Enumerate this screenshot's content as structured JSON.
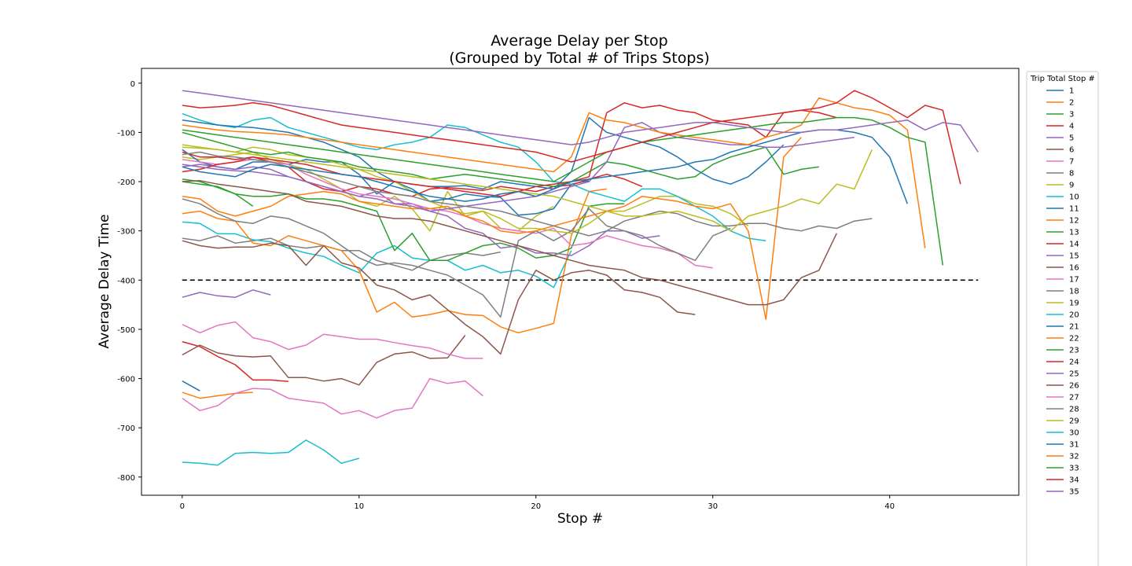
{
  "chart_data": {
    "type": "line",
    "title": [
      "Average Delay per Stop",
      "(Grouped by Total # of Trips Stops)"
    ],
    "xlabel": "Stop #",
    "ylabel": "Average Delay Time",
    "xlim": [
      -2.3,
      47.3
    ],
    "ylim": [
      -837,
      30
    ],
    "xticks": [
      0,
      10,
      20,
      30,
      40
    ],
    "yticks": [
      0,
      -100,
      -200,
      -300,
      -400,
      -500,
      -600,
      -700,
      -800
    ],
    "reference_line": {
      "y": -400,
      "x_range": [
        0,
        45
      ],
      "style": "dashed",
      "color": "#000000"
    },
    "legend": {
      "title": "Trip Total Stop #",
      "placement": "right (outside plot)"
    },
    "colors": [
      "#1f77b4",
      "#ff7f0e",
      "#2ca02c",
      "#d62728",
      "#9467bd",
      "#8c564b",
      "#e377c2",
      "#7f7f7f",
      "#bcbd22",
      "#17becf"
    ],
    "series": [
      {
        "name": "1",
        "values": [
          -605,
          -625
        ]
      },
      {
        "name": "2",
        "values": [
          -628,
          -640,
          -635,
          -630,
          -628
        ]
      },
      {
        "name": "3",
        "values": [
          -200,
          -205,
          -210,
          -225,
          -250
        ]
      },
      {
        "name": "4",
        "values": [
          -525,
          -535,
          -555,
          -572,
          -603,
          -603,
          -606
        ]
      },
      {
        "name": "5",
        "values": [
          -435,
          -425,
          -432,
          -435,
          -420,
          -430
        ]
      },
      {
        "name": "6",
        "values": [
          -552,
          -532,
          -548,
          -554,
          -556,
          -554,
          -598,
          -598,
          -605,
          -600,
          -613,
          -567,
          -550,
          -546,
          -559,
          -558,
          -512
        ]
      },
      {
        "name": "7",
        "values": [
          -490,
          -507,
          -492,
          -485,
          -517,
          -525,
          -541,
          -532,
          -510,
          -515,
          -520,
          -520,
          -527,
          -533,
          -538,
          -550,
          -559,
          -559
        ]
      },
      {
        "name": "8",
        "values": [
          -315,
          -320,
          -310,
          -325,
          -320,
          -315,
          -330,
          -335,
          -330,
          -340,
          -340,
          -360,
          -370,
          -380,
          -360,
          -350,
          -345,
          -350,
          -343
        ]
      },
      {
        "name": "9",
        "values": [
          -150,
          -155,
          -150,
          -145,
          -140,
          -155,
          -165,
          -175,
          -195,
          -215,
          -240,
          -250,
          -230,
          -255,
          -300,
          -220,
          -270,
          -260,
          -295,
          -300,
          -270,
          -250
        ]
      },
      {
        "name": "10",
        "values": [
          -282,
          -285,
          -306,
          -306,
          -318,
          -322,
          -335,
          -345,
          -352,
          -370,
          -385,
          -345,
          -330,
          -355,
          -360,
          -360,
          -380,
          -370,
          -385,
          -380,
          -392,
          -415,
          -340
        ]
      },
      {
        "name": "11",
        "values": [
          -135,
          -160,
          -170,
          -175,
          -160,
          -160,
          -165,
          -155,
          -160,
          -160,
          -185,
          -225,
          -200,
          -215,
          -240,
          -235,
          -225,
          -230,
          -232,
          -268,
          -265,
          -255,
          -205,
          -198
        ]
      },
      {
        "name": "12",
        "values": [
          -265,
          -260,
          -275,
          -280,
          -325,
          -330,
          -310,
          -320,
          -330,
          -340,
          -380,
          -465,
          -445,
          -475,
          -470,
          -462,
          -470,
          -472,
          -495,
          -507,
          -498,
          -488,
          -310,
          -220,
          -215
        ]
      },
      {
        "name": "13",
        "values": [
          -195,
          -200,
          -212,
          -225,
          -230,
          -230,
          -225,
          -235,
          -235,
          -240,
          -250,
          -260,
          -340,
          -305,
          -360,
          -360,
          -345,
          -330,
          -325,
          -335,
          -355,
          -350,
          -335,
          -250,
          -245,
          -245
        ]
      },
      {
        "name": "14",
        "values": [
          -140,
          -150,
          -150,
          -155,
          -150,
          -160,
          -170,
          -200,
          -215,
          -220,
          -210,
          -215,
          -225,
          -230,
          -215,
          -212,
          -215,
          -218,
          -210,
          -215,
          -220,
          -210,
          -207,
          -195,
          -185,
          -195,
          -210
        ]
      },
      {
        "name": "15",
        "values": [
          -170,
          -165,
          -170,
          -175,
          -170,
          -175,
          -190,
          -200,
          -210,
          -220,
          -230,
          -220,
          -245,
          -245,
          -260,
          -270,
          -295,
          -305,
          -335,
          -330,
          -345,
          -345,
          -350,
          -330,
          -300,
          -300,
          -315,
          -310
        ]
      },
      {
        "name": "16",
        "values": [
          -320,
          -330,
          -335,
          -333,
          -333,
          -325,
          -330,
          -370,
          -330,
          -365,
          -375,
          -410,
          -420,
          -440,
          -430,
          -460,
          -490,
          -515,
          -550,
          -440,
          -380,
          -400,
          -385,
          -380,
          -390,
          -420,
          -425,
          -435,
          -465,
          -470
        ]
      },
      {
        "name": "17",
        "values": [
          -155,
          -160,
          -165,
          -160,
          -155,
          -160,
          -165,
          -185,
          -200,
          -215,
          -225,
          -230,
          -235,
          -245,
          -255,
          -260,
          -270,
          -285,
          -295,
          -300,
          -305,
          -295,
          -330,
          -325,
          -310,
          -320,
          -330,
          -335,
          -345,
          -370,
          -375
        ]
      },
      {
        "name": "18",
        "values": [
          -235,
          -245,
          -265,
          -280,
          -285,
          -270,
          -275,
          -290,
          -305,
          -330,
          -355,
          -370,
          -365,
          -370,
          -380,
          -390,
          -410,
          -430,
          -475,
          -320,
          -300,
          -320,
          -300,
          -255,
          -290,
          -300,
          -310,
          -330,
          -345,
          -360,
          -310,
          -295
        ]
      },
      {
        "name": "19",
        "values": [
          -125,
          -130,
          -135,
          -140,
          -130,
          -135,
          -145,
          -150,
          -155,
          -165,
          -175,
          -190,
          -200,
          -220,
          -240,
          -255,
          -265,
          -260,
          -275,
          -295,
          -295,
          -300,
          -305,
          -285,
          -260,
          -260,
          -245,
          -230,
          -230,
          -245,
          -250,
          -265,
          -290
        ]
      },
      {
        "name": "20",
        "values": [
          -62,
          -75,
          -85,
          -90,
          -75,
          -70,
          -90,
          -100,
          -110,
          -120,
          -130,
          -135,
          -125,
          -120,
          -110,
          -85,
          -90,
          -105,
          -120,
          -130,
          -160,
          -200,
          -205,
          -220,
          -230,
          -240,
          -215,
          -215,
          -230,
          -250,
          -270,
          -300,
          -315,
          -320
        ]
      },
      {
        "name": "21",
        "values": [
          -75,
          -80,
          -85,
          -88,
          -90,
          -95,
          -100,
          -110,
          -120,
          -135,
          -150,
          -180,
          -200,
          -205,
          -210,
          -210,
          -208,
          -215,
          -200,
          -205,
          -210,
          -215,
          -180,
          -70,
          -100,
          -110,
          -120,
          -130,
          -150,
          -175,
          -195,
          -205,
          -190,
          -160,
          -125
        ]
      },
      {
        "name": "22",
        "values": [
          -230,
          -235,
          -260,
          -270,
          -260,
          -250,
          -230,
          -225,
          -220,
          -225,
          -240,
          -245,
          -250,
          -255,
          -255,
          -250,
          -270,
          -280,
          -300,
          -305,
          -300,
          -290,
          -280,
          -270,
          -260,
          -250,
          -230,
          -235,
          -240,
          -250,
          -255,
          -245,
          -300,
          -480,
          -150,
          -110
        ]
      },
      {
        "name": "23",
        "values": [
          -100,
          -110,
          -120,
          -130,
          -140,
          -145,
          -140,
          -150,
          -155,
          -160,
          -170,
          -175,
          -180,
          -185,
          -195,
          -190,
          -185,
          -190,
          -195,
          -200,
          -205,
          -210,
          -200,
          -180,
          -160,
          -165,
          -175,
          -185,
          -195,
          -190,
          -165,
          -150,
          -140,
          -130,
          -185,
          -175,
          -170
        ]
      },
      {
        "name": "24",
        "values": [
          -180,
          -175,
          -165,
          -160,
          -150,
          -155,
          -160,
          -165,
          -175,
          -185,
          -190,
          -195,
          -200,
          -205,
          -210,
          -215,
          -220,
          -225,
          -230,
          -220,
          -210,
          -205,
          -200,
          -190,
          -60,
          -40,
          -50,
          -45,
          -55,
          -60,
          -75,
          -80,
          -85,
          -110,
          -60,
          -55,
          -60,
          -70
        ]
      },
      {
        "name": "25",
        "values": [
          -165,
          -170,
          -175,
          -178,
          -180,
          -185,
          -190,
          -200,
          -210,
          -220,
          -230,
          -235,
          -245,
          -250,
          -260,
          -255,
          -250,
          -245,
          -240,
          -235,
          -230,
          -220,
          -210,
          -200,
          -160,
          -90,
          -80,
          -100,
          -110,
          -115,
          -120,
          -125,
          -125,
          -130,
          -130,
          -125,
          -120,
          -115,
          -110
        ]
      },
      {
        "name": "26",
        "values": [
          -200,
          -198,
          -205,
          -210,
          -215,
          -220,
          -225,
          -240,
          -245,
          -250,
          -260,
          -270,
          -275,
          -275,
          -280,
          -290,
          -300,
          -310,
          -320,
          -330,
          -340,
          -350,
          -360,
          -370,
          -375,
          -380,
          -395,
          -400,
          -410,
          -420,
          -430,
          -440,
          -450,
          -450,
          -440,
          -395,
          -380,
          -305
        ]
      },
      {
        "name": "27",
        "values": [
          -640,
          -665,
          -655,
          -630,
          -620,
          -622,
          -640,
          -645,
          -650,
          -672,
          -665,
          -680,
          -665,
          -660,
          -600,
          -610,
          -605,
          -635
        ]
      },
      {
        "name": "28",
        "values": [
          -145,
          -140,
          -148,
          -150,
          -155,
          -160,
          -170,
          -180,
          -190,
          -200,
          -210,
          -220,
          -225,
          -230,
          -240,
          -245,
          -250,
          -255,
          -260,
          -270,
          -280,
          -290,
          -300,
          -310,
          -300,
          -280,
          -270,
          -260,
          -265,
          -280,
          -290,
          -290,
          -285,
          -285,
          -295,
          -300,
          -290,
          -295,
          -280,
          -275
        ]
      },
      {
        "name": "29",
        "values": [
          -130,
          -132,
          -135,
          -140,
          -145,
          -150,
          -155,
          -160,
          -165,
          -170,
          -175,
          -180,
          -185,
          -190,
          -195,
          -200,
          -205,
          -210,
          -215,
          -220,
          -225,
          -230,
          -240,
          -250,
          -260,
          -270,
          -270,
          -265,
          -260,
          -270,
          -280,
          -300,
          -270,
          -260,
          -250,
          -235,
          -245,
          -205,
          -215,
          -135
        ]
      },
      {
        "name": "30",
        "values": [
          -770,
          -772,
          -776,
          -752,
          -750,
          -752,
          -750,
          -725,
          -745,
          -772,
          -762
        ]
      },
      {
        "name": "31",
        "values": [
          -170,
          -180,
          -185,
          -190,
          -175,
          -165,
          -170,
          -175,
          -180,
          -185,
          -190,
          -200,
          -210,
          -220,
          -230,
          -235,
          -240,
          -235,
          -225,
          -220,
          -230,
          -215,
          -200,
          -195,
          -190,
          -185,
          -180,
          -175,
          -170,
          -160,
          -155,
          -140,
          -130,
          -120,
          -110,
          -100,
          -95,
          -95,
          -100,
          -110,
          -150,
          -245
        ]
      },
      {
        "name": "32",
        "values": [
          -85,
          -90,
          -95,
          -98,
          -100,
          -102,
          -105,
          -110,
          -115,
          -120,
          -125,
          -130,
          -135,
          -140,
          -145,
          -150,
          -155,
          -160,
          -165,
          -170,
          -175,
          -180,
          -150,
          -60,
          -75,
          -80,
          -90,
          -100,
          -105,
          -110,
          -115,
          -120,
          -125,
          -110,
          -100,
          -85,
          -30,
          -40,
          -50,
          -55,
          -65,
          -95,
          -335
        ]
      },
      {
        "name": "33",
        "values": [
          -95,
          -100,
          -105,
          -110,
          -115,
          -120,
          -125,
          -130,
          -135,
          -140,
          -145,
          -150,
          -155,
          -160,
          -165,
          -170,
          -175,
          -180,
          -185,
          -190,
          -195,
          -200,
          -180,
          -160,
          -140,
          -130,
          -120,
          -115,
          -110,
          -105,
          -100,
          -95,
          -90,
          -85,
          -80,
          -80,
          -75,
          -70,
          -70,
          -75,
          -90,
          -110,
          -120,
          -370
        ]
      },
      {
        "name": "34",
        "values": [
          -45,
          -50,
          -48,
          -45,
          -40,
          -45,
          -55,
          -65,
          -75,
          -85,
          -90,
          -95,
          -100,
          -105,
          -110,
          -115,
          -120,
          -125,
          -130,
          -135,
          -140,
          -150,
          -160,
          -150,
          -140,
          -130,
          -120,
          -110,
          -100,
          -90,
          -80,
          -75,
          -70,
          -65,
          -60,
          -55,
          -50,
          -40,
          -15,
          -30,
          -50,
          -70,
          -45,
          -55,
          -205
        ]
      },
      {
        "name": "35",
        "values": [
          -15,
          -20,
          -25,
          -30,
          -35,
          -40,
          -45,
          -50,
          -55,
          -60,
          -65,
          -70,
          -75,
          -80,
          -85,
          -90,
          -95,
          -100,
          -105,
          -110,
          -115,
          -120,
          -125,
          -120,
          -110,
          -100,
          -95,
          -90,
          -85,
          -80,
          -80,
          -85,
          -90,
          -95,
          -100,
          -100,
          -95,
          -95,
          -90,
          -85,
          -80,
          -75,
          -95,
          -80,
          -85,
          -140
        ]
      }
    ]
  }
}
